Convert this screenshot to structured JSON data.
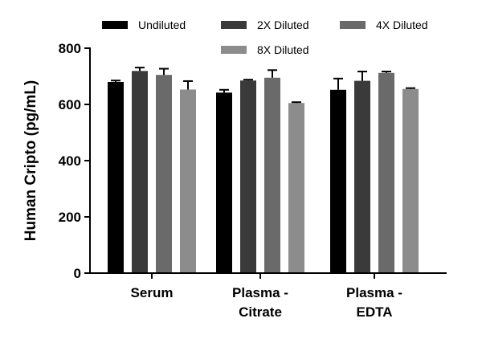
{
  "chart_data": {
    "type": "bar",
    "title": "",
    "xlabel": "",
    "ylabel": "Human Cripto (pg/mL)",
    "ylim": [
      0,
      800
    ],
    "yticks": [
      0,
      200,
      400,
      600,
      800
    ],
    "categories": [
      [
        "Serum"
      ],
      [
        "Plasma -",
        "Citrate"
      ],
      [
        "Plasma -",
        "EDTA"
      ]
    ],
    "series": [
      {
        "name": "Undiluted",
        "color": "#000000",
        "values": [
          680,
          642,
          652
        ],
        "errors": [
          5,
          10,
          40
        ]
      },
      {
        "name": "2X Diluted",
        "color": "#3a3a3a",
        "values": [
          719,
          685,
          684
        ],
        "errors": [
          12,
          3,
          33
        ]
      },
      {
        "name": "4X Diluted",
        "color": "#6a6a6a",
        "values": [
          705,
          695,
          712
        ],
        "errors": [
          22,
          27,
          5
        ]
      },
      {
        "name": "8X Diluted",
        "color": "#8c8c8c",
        "values": [
          653,
          605,
          655
        ],
        "errors": [
          30,
          3,
          3
        ]
      }
    ],
    "legend_position": "top"
  }
}
